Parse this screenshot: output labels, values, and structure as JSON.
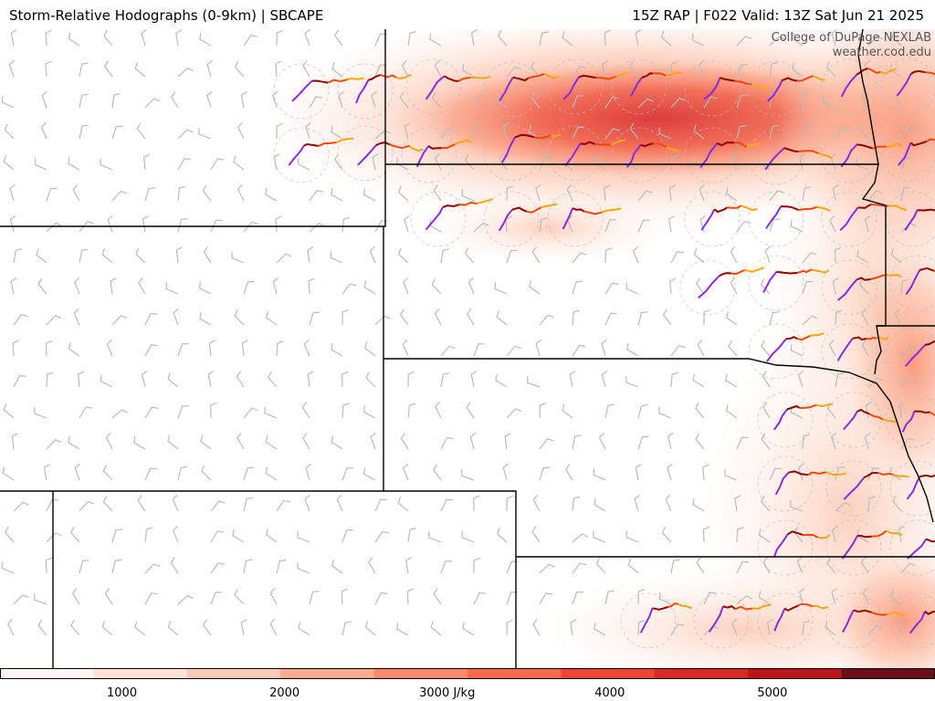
{
  "header": {
    "title_left": "Storm-Relative Hodographs (0-9km) | SBCAPE",
    "title_right": "15Z RAP | F022 Valid: 13Z Sat Jun 21 2025"
  },
  "credits": {
    "line1": "College of DuPage NEXLAB",
    "line2": "weather.cod.edu"
  },
  "colorbar": {
    "ticks": [
      {
        "label": "1000",
        "value": 1000
      },
      {
        "label": "2000",
        "value": 2000
      },
      {
        "label": "3000 J/kg",
        "value": 3000
      },
      {
        "label": "4000",
        "value": 4000
      },
      {
        "label": "5000",
        "value": 5000
      }
    ],
    "min": 250,
    "max": 6000,
    "colors": [
      "#fff5f0",
      "#fee4d8",
      "#fdcab5",
      "#fcab8f",
      "#fc8a6a",
      "#f9694c",
      "#ef4533",
      "#d92723",
      "#bb151a",
      "#6b0f1a"
    ]
  },
  "colors": {
    "state_border": "#000000",
    "wind_barb": "#bbbbbb",
    "hodo_ring": "#bbbbbb",
    "hodo_0_3": "#8a2be2",
    "hodo_3_6": "#8b0000",
    "hodo_6_9": "#ff4500",
    "hodo_9_12": "#ffa500"
  }
}
